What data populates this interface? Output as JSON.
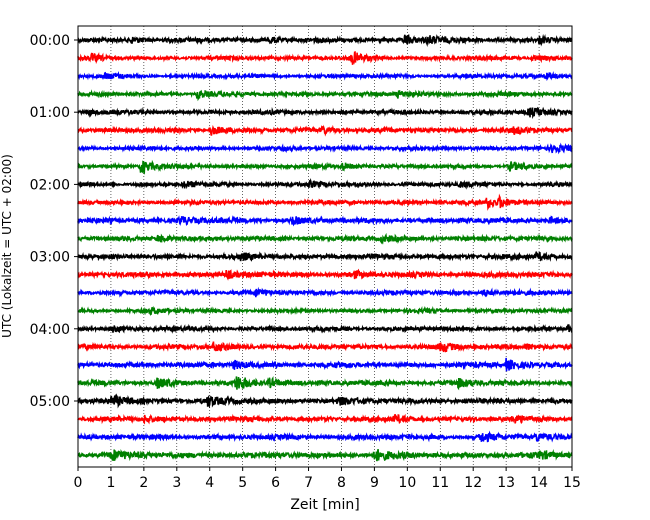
{
  "chart_data": {
    "type": "line",
    "xlabel": "Zeit  [min]",
    "ylabel": "UTC (Lokalzeit = UTC + 02:00)",
    "xlim": [
      0,
      15
    ],
    "x_ticks": [
      "0",
      "1",
      "2",
      "3",
      "4",
      "5",
      "6",
      "7",
      "8",
      "9",
      "10",
      "11",
      "12",
      "13",
      "14",
      "15"
    ],
    "y_ticks": [
      "00:00",
      "01:00",
      "02:00",
      "03:00",
      "04:00",
      "05:00"
    ],
    "y_tick_rows": [
      0,
      4,
      8,
      12,
      16,
      20
    ],
    "vertical_grid": true,
    "grid_style": "dotted",
    "colors": [
      "#000000",
      "#ff0000",
      "#0000ff",
      "#008000"
    ],
    "traces": [
      {
        "start": "00:00",
        "amp": 0.32,
        "events": [
          [
            1.6,
            0.6
          ],
          [
            5.8,
            0.6
          ],
          [
            9.9,
            0.9
          ],
          [
            10.6,
            0.7
          ],
          [
            14.0,
            0.6
          ]
        ]
      },
      {
        "start": "00:15",
        "amp": 0.28,
        "events": [
          [
            0.4,
            0.5
          ],
          [
            8.3,
            1.0
          ],
          [
            13.8,
            0.5
          ]
        ]
      },
      {
        "start": "00:30",
        "amp": 0.26,
        "events": [
          [
            0.8,
            0.4
          ],
          [
            14.2,
            0.5
          ]
        ]
      },
      {
        "start": "00:45",
        "amp": 0.28,
        "events": [
          [
            3.6,
            0.8
          ],
          [
            9.7,
            0.6
          ]
        ]
      },
      {
        "start": "01:00",
        "amp": 0.3,
        "events": [
          [
            0.3,
            0.4
          ],
          [
            13.7,
            0.7
          ]
        ]
      },
      {
        "start": "01:15",
        "amp": 0.32,
        "events": [
          [
            4.0,
            0.9
          ],
          [
            7.4,
            0.6
          ],
          [
            13.2,
            0.5
          ]
        ]
      },
      {
        "start": "01:30",
        "amp": 0.28,
        "events": [
          [
            14.4,
            0.6
          ]
        ]
      },
      {
        "start": "01:45",
        "amp": 0.26,
        "events": [
          [
            1.9,
            1.2
          ],
          [
            8.0,
            0.7
          ],
          [
            13.1,
            0.8
          ]
        ]
      },
      {
        "start": "02:00",
        "amp": 0.28,
        "events": [
          [
            3.2,
            0.6
          ],
          [
            7.0,
            0.5
          ],
          [
            11.6,
            0.4
          ]
        ]
      },
      {
        "start": "02:15",
        "amp": 0.3,
        "events": [
          [
            12.4,
            0.9
          ],
          [
            12.8,
            0.7
          ]
        ]
      },
      {
        "start": "02:30",
        "amp": 0.36,
        "events": [
          [
            3.1,
            0.7
          ],
          [
            6.5,
            0.6
          ],
          [
            14.3,
            0.5
          ]
        ]
      },
      {
        "start": "02:45",
        "amp": 0.32,
        "events": [
          [
            2.4,
            0.6
          ],
          [
            9.2,
            0.5
          ]
        ]
      },
      {
        "start": "03:00",
        "amp": 0.34,
        "events": [
          [
            4.9,
            0.5
          ],
          [
            13.9,
            0.6
          ]
        ]
      },
      {
        "start": "03:15",
        "amp": 0.36,
        "events": [
          [
            4.5,
            0.6
          ],
          [
            8.4,
            0.5
          ]
        ]
      },
      {
        "start": "03:30",
        "amp": 0.3,
        "events": [
          [
            5.4,
            0.5
          ],
          [
            12.3,
            0.5
          ]
        ]
      },
      {
        "start": "03:45",
        "amp": 0.26,
        "events": [
          [
            2.2,
            0.4
          ]
        ]
      },
      {
        "start": "04:00",
        "amp": 0.3,
        "events": [
          [
            1.0,
            0.5
          ],
          [
            14.9,
            0.6
          ]
        ]
      },
      {
        "start": "04:15",
        "amp": 0.34,
        "events": [
          [
            4.1,
            0.6
          ],
          [
            11.0,
            0.7
          ],
          [
            13.6,
            0.5
          ]
        ]
      },
      {
        "start": "04:30",
        "amp": 0.36,
        "events": [
          [
            4.7,
            0.7
          ],
          [
            13.0,
            1.0
          ]
        ]
      },
      {
        "start": "04:45",
        "amp": 0.34,
        "events": [
          [
            2.4,
            0.9
          ],
          [
            4.8,
            1.3
          ],
          [
            5.8,
            0.7
          ],
          [
            11.5,
            0.7
          ]
        ]
      },
      {
        "start": "05:00",
        "amp": 0.38,
        "events": [
          [
            1.0,
            0.9
          ],
          [
            3.9,
            0.8
          ],
          [
            7.9,
            0.5
          ]
        ]
      },
      {
        "start": "05:15",
        "amp": 0.34,
        "events": [
          [
            2.0,
            0.6
          ],
          [
            9.6,
            0.5
          ],
          [
            13.2,
            0.5
          ]
        ]
      },
      {
        "start": "05:30",
        "amp": 0.36,
        "events": [
          [
            12.2,
            0.8
          ],
          [
            13.9,
            0.6
          ]
        ]
      },
      {
        "start": "05:45",
        "amp": 0.4,
        "events": [
          [
            1.0,
            0.9
          ],
          [
            9.0,
            1.0
          ],
          [
            14.0,
            0.5
          ]
        ]
      }
    ]
  }
}
